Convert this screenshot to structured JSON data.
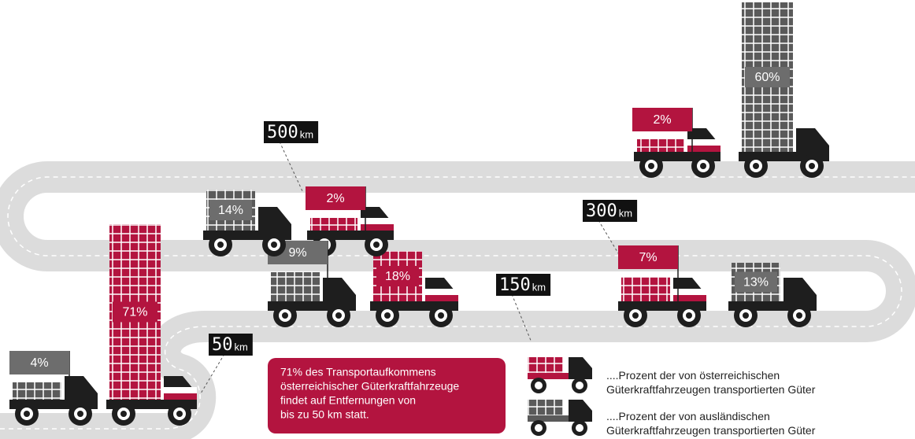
{
  "chart_data": {
    "type": "pictograph",
    "series": [
      {
        "name": "....Prozent der von österreichischen Güterkraftfahrzeugen transportierten Güter",
        "color": "#b3143f",
        "values": [
          71,
          18,
          7,
          2,
          2
        ],
        "value_labels": [
          "71%",
          "18%",
          "7%",
          "2%",
          "2%"
        ]
      },
      {
        "name": "....Prozent der von ausländischen Güterkraftfahrzeugen transportierten Güter",
        "color": "#5a5a5a",
        "values": [
          4,
          9,
          13,
          14,
          60
        ],
        "value_labels": [
          "4%",
          "9%",
          "13%",
          "14%",
          "60%"
        ]
      }
    ],
    "distance_markers": [
      "50",
      "150",
      "300",
      "500"
    ],
    "distance_unit": "km",
    "annotation": [
      "71% des Transportaufkommens",
      "österreichischer Güterkraftfahrzeuge",
      "findet auf Entfernungen von",
      "bis zu 50 km statt."
    ]
  }
}
